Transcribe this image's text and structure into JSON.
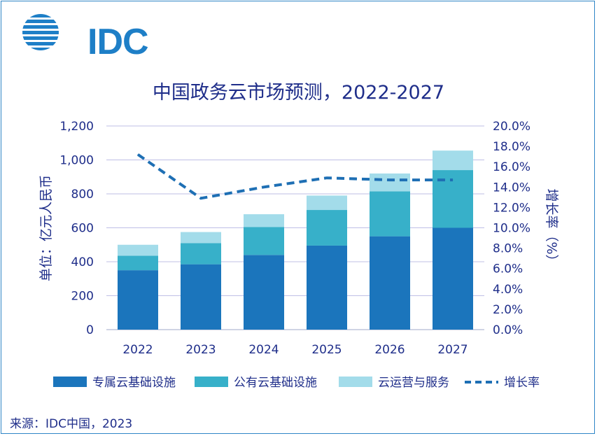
{
  "logo": {
    "brand": "IDC",
    "icon": "idc-globe-icon"
  },
  "title": "中国政务云市场预测，2022-2027",
  "source": "来源：IDC中国，2023",
  "colors": {
    "private_cloud": "#1b75bc",
    "public_cloud": "#37b0c9",
    "ops_services": "#a3dcea",
    "growth": "#1e6fb4",
    "text": "#1f2e8a",
    "grid": "#bfbfe6"
  },
  "chart_data": {
    "type": "bar",
    "stacked": true,
    "title": "中国政务云市场预测，2022-2027",
    "categories": [
      "2022",
      "2023",
      "2024",
      "2025",
      "2026",
      "2027"
    ],
    "series": [
      {
        "name": "专属云基础设施",
        "values": [
          350,
          385,
          440,
          495,
          550,
          600
        ]
      },
      {
        "name": "公有云基础设施",
        "values": [
          85,
          125,
          165,
          210,
          265,
          340
        ]
      },
      {
        "name": "云运营与服务",
        "values": [
          65,
          65,
          75,
          85,
          105,
          115
        ]
      }
    ],
    "line_series": {
      "name": "增长率",
      "values": [
        17.2,
        12.9,
        14.0,
        14.9,
        14.7,
        14.7
      ]
    },
    "ylabel": "单位：亿元人民币",
    "y2label": "增长率（%）",
    "ylim": [
      0,
      1200
    ],
    "y2lim": [
      0,
      20
    ],
    "yticks": [
      "0",
      "200",
      "400",
      "600",
      "800",
      "1,000",
      "1,200"
    ],
    "y2ticks": [
      "0.0%",
      "2.0%",
      "4.0%",
      "6.0%",
      "8.0%",
      "10.0%",
      "12.0%",
      "14.0%",
      "16.0%",
      "18.0%",
      "20.0%"
    ],
    "grid": true,
    "legend_position": "bottom"
  }
}
